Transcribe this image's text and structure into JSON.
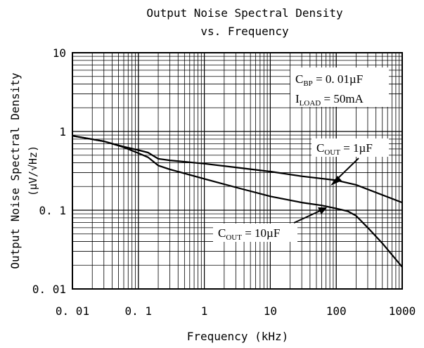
{
  "chart_data": {
    "type": "line",
    "title_line1": "Output Noise Spectral Density",
    "title_line2": "vs. Frequency",
    "xlabel": "Frequency (kHz)",
    "ylabel_line1": "Output Noise Spectral Density",
    "ylabel_line2": "(µV/√Hz)",
    "x_scale": "log",
    "y_scale": "log",
    "xlim": [
      0.01,
      1000
    ],
    "ylim": [
      0.01,
      10
    ],
    "grid": true,
    "x_ticks": [
      {
        "value": 0.01,
        "label": "0. 01"
      },
      {
        "value": 0.1,
        "label": "0. 1"
      },
      {
        "value": 1,
        "label": "1"
      },
      {
        "value": 10,
        "label": "10"
      },
      {
        "value": 100,
        "label": "100"
      },
      {
        "value": 1000,
        "label": "1000"
      }
    ],
    "y_ticks": [
      {
        "value": 0.01,
        "label": "0. 01"
      },
      {
        "value": 0.1,
        "label": "0. 1"
      },
      {
        "value": 1,
        "label": "1"
      },
      {
        "value": 10,
        "label": "10"
      }
    ],
    "conditions": {
      "cbp": {
        "base": "C",
        "sub": "BP",
        "rest": " = 0. 01µF"
      },
      "iload": {
        "base": "I",
        "sub": "LOAD",
        "rest": " = 50mA"
      }
    },
    "series": [
      {
        "label": {
          "base": "C",
          "sub": "OUT",
          "rest": " = 1µF"
        },
        "points": [
          [
            0.01,
            0.88
          ],
          [
            0.03,
            0.75
          ],
          [
            0.06,
            0.64
          ],
          [
            0.1,
            0.58
          ],
          [
            0.14,
            0.54
          ],
          [
            0.2,
            0.45
          ],
          [
            0.3,
            0.43
          ],
          [
            1,
            0.39
          ],
          [
            3,
            0.35
          ],
          [
            10,
            0.31
          ],
          [
            30,
            0.27
          ],
          [
            100,
            0.24
          ],
          [
            200,
            0.21
          ],
          [
            1000,
            0.125
          ]
        ]
      },
      {
        "label": {
          "base": "C",
          "sub": "OUT",
          "rest": " = 10µF"
        },
        "points": [
          [
            0.01,
            0.88
          ],
          [
            0.03,
            0.75
          ],
          [
            0.06,
            0.63
          ],
          [
            0.1,
            0.53
          ],
          [
            0.14,
            0.47
          ],
          [
            0.2,
            0.37
          ],
          [
            0.3,
            0.33
          ],
          [
            1,
            0.25
          ],
          [
            3,
            0.195
          ],
          [
            10,
            0.15
          ],
          [
            30,
            0.125
          ],
          [
            60,
            0.115
          ],
          [
            100,
            0.105
          ],
          [
            150,
            0.097
          ],
          [
            200,
            0.085
          ],
          [
            300,
            0.06
          ],
          [
            500,
            0.038
          ],
          [
            1000,
            0.019
          ]
        ]
      }
    ]
  }
}
